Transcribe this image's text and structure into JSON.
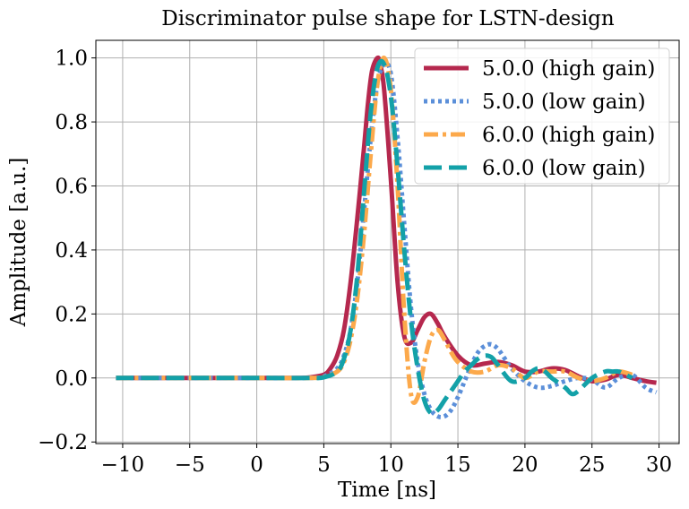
{
  "chart_data": {
    "type": "line",
    "title": "Discriminator pulse shape for LSTN-design",
    "xlabel": "Time [ns]",
    "ylabel": "Amplitude [a.u.]",
    "xlim": [
      -12,
      31.5
    ],
    "ylim": [
      -0.205,
      1.055
    ],
    "xticks": [
      -10,
      -5,
      0,
      5,
      10,
      15,
      20,
      25,
      30
    ],
    "yticks": [
      -0.2,
      0.0,
      0.2,
      0.4,
      0.6,
      0.8,
      1.0
    ],
    "xtick_labels": [
      "−10",
      "−5",
      "0",
      "5",
      "10",
      "15",
      "20",
      "25",
      "30"
    ],
    "ytick_labels": [
      "−0.2",
      "0.0",
      "0.2",
      "0.4",
      "0.6",
      "0.8",
      "1.0"
    ],
    "grid": true,
    "legend_position": "top-right",
    "series": [
      {
        "name": "5.0.0 (high gain)",
        "color": "#b5284e",
        "style": "solid",
        "x": [
          -10.5,
          -5,
          0,
          3,
          4,
          5,
          5.5,
          6,
          6.5,
          7,
          7.5,
          8,
          8.3,
          8.6,
          9,
          9.2,
          9.5,
          10,
          10.5,
          11,
          11.5,
          12,
          12.5,
          13,
          13.5,
          14,
          15,
          16,
          17,
          18,
          19,
          20,
          21,
          22,
          23,
          24,
          25,
          26,
          27,
          28,
          29,
          29.8
        ],
        "y": [
          0.0,
          0.0,
          0.0,
          0.0,
          0.002,
          0.01,
          0.03,
          0.07,
          0.15,
          0.3,
          0.5,
          0.72,
          0.86,
          0.96,
          1.0,
          0.98,
          0.9,
          0.62,
          0.3,
          0.13,
          0.11,
          0.15,
          0.19,
          0.2,
          0.17,
          0.13,
          0.07,
          0.04,
          0.045,
          0.05,
          0.04,
          0.02,
          0.02,
          0.03,
          0.025,
          0.005,
          -0.01,
          -0.005,
          0.01,
          0.0,
          -0.01,
          -0.015
        ]
      },
      {
        "name": "5.0.0 (low gain)",
        "color": "#5b8fd9",
        "style": "dotted",
        "x": [
          -10.5,
          -5,
          0,
          4,
          5,
          6,
          6.5,
          7,
          7.5,
          8,
          8.5,
          9,
          9.5,
          10,
          10.5,
          11,
          11.5,
          12,
          12.5,
          13,
          13.5,
          14,
          14.5,
          15,
          15.5,
          16,
          16.5,
          17,
          17.5,
          18,
          18.5,
          19,
          20,
          21,
          22,
          23,
          24,
          25,
          26,
          27,
          28,
          29,
          29.8
        ],
        "y": [
          0.0,
          0.0,
          0.0,
          0.0,
          0.005,
          0.03,
          0.07,
          0.15,
          0.3,
          0.52,
          0.75,
          0.92,
          0.98,
          0.95,
          0.75,
          0.48,
          0.22,
          0.05,
          -0.05,
          -0.1,
          -0.12,
          -0.12,
          -0.1,
          -0.06,
          -0.01,
          0.04,
          0.08,
          0.1,
          0.105,
          0.09,
          0.06,
          0.03,
          -0.01,
          -0.03,
          -0.025,
          -0.01,
          0.0,
          -0.005,
          -0.03,
          0.0,
          0.01,
          -0.03,
          -0.045
        ]
      },
      {
        "name": "6.0.0 (high gain)",
        "color": "#fca94b",
        "style": "dashdot",
        "x": [
          -10.5,
          -5,
          0,
          4,
          5,
          6,
          6.5,
          7,
          7.5,
          8,
          8.5,
          9,
          9.5,
          10,
          10.5,
          11,
          11.5,
          12,
          12.5,
          13,
          13.5,
          14,
          14.5,
          15,
          16,
          17,
          18,
          19,
          20,
          21,
          22,
          23,
          24,
          25,
          26,
          27,
          28
        ],
        "y": [
          0.0,
          0.0,
          0.0,
          0.0,
          0.003,
          0.02,
          0.05,
          0.12,
          0.25,
          0.45,
          0.7,
          0.92,
          1.0,
          0.9,
          0.6,
          0.2,
          -0.05,
          -0.06,
          0.05,
          0.13,
          0.15,
          0.12,
          0.08,
          0.05,
          0.02,
          0.02,
          0.04,
          0.03,
          0.0,
          0.02,
          0.02,
          0.02,
          0.0,
          -0.01,
          0.0,
          0.02,
          0.01
        ]
      },
      {
        "name": "6.0.0 (low gain)",
        "color": "#13a1a8",
        "style": "dashed",
        "x": [
          -10.5,
          -5,
          0,
          4,
          5,
          6,
          6.5,
          7,
          7.5,
          8,
          8.5,
          9,
          9.5,
          10,
          10.5,
          11,
          11.5,
          12,
          12.5,
          13,
          13.5,
          14,
          14.5,
          15,
          15.5,
          16,
          16.5,
          17,
          17.5,
          18,
          19,
          20,
          20.5,
          21,
          21.5,
          22,
          23,
          23.5,
          24,
          25,
          26,
          26.5,
          27,
          27.5,
          28
        ],
        "y": [
          0.0,
          0.0,
          0.0,
          0.0,
          0.002,
          0.02,
          0.06,
          0.15,
          0.32,
          0.58,
          0.83,
          0.97,
          0.98,
          0.88,
          0.66,
          0.4,
          0.18,
          0.03,
          -0.07,
          -0.11,
          -0.1,
          -0.07,
          -0.04,
          -0.01,
          0.02,
          0.04,
          0.06,
          0.07,
          0.065,
          0.04,
          -0.01,
          0.0,
          0.02,
          0.03,
          0.02,
          0.0,
          -0.03,
          -0.05,
          -0.04,
          0.0,
          0.02,
          0.02,
          0.02,
          0.01,
          0.0
        ]
      }
    ]
  }
}
